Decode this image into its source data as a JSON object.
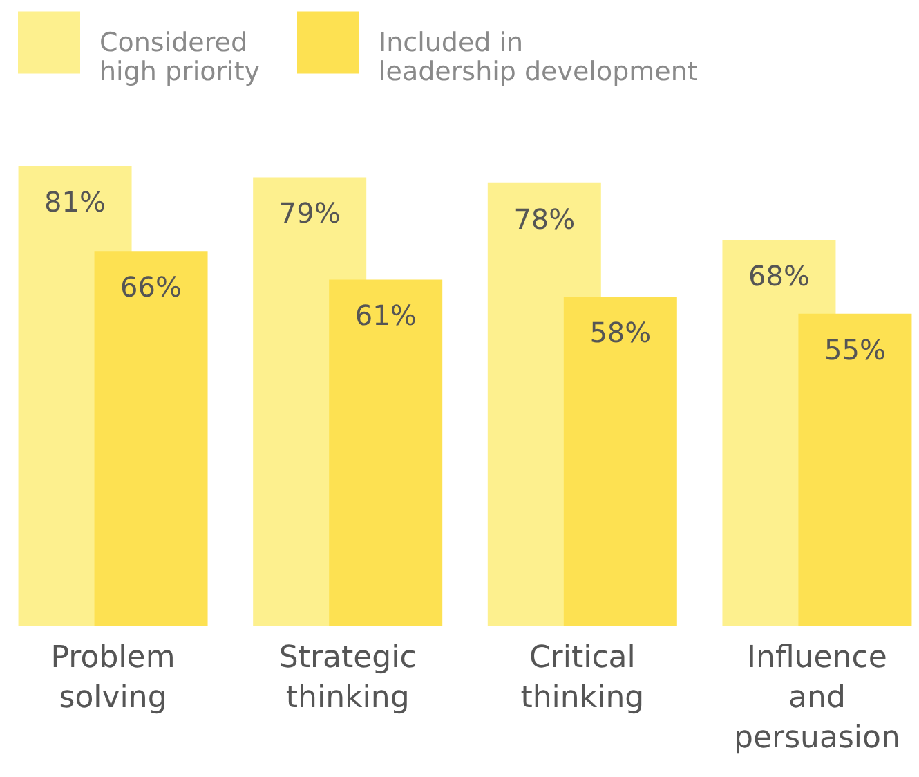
{
  "chart_data": {
    "type": "bar",
    "categories": [
      "Problem solving",
      "Strategic thinking",
      "Critical thinking",
      "Influence and persuasion"
    ],
    "series": [
      {
        "name": "Considered high priority",
        "color": "#fdf08e",
        "values": [
          81,
          79,
          78,
          68
        ],
        "value_labels": [
          "81%",
          "79%",
          "78%",
          "68%"
        ]
      },
      {
        "name": "Included in leadership development",
        "color": "#fde152",
        "values": [
          66,
          61,
          58,
          55
        ],
        "value_labels": [
          "66%",
          "61%",
          "58%",
          "55%"
        ]
      }
    ],
    "legend": "top left"
  }
}
